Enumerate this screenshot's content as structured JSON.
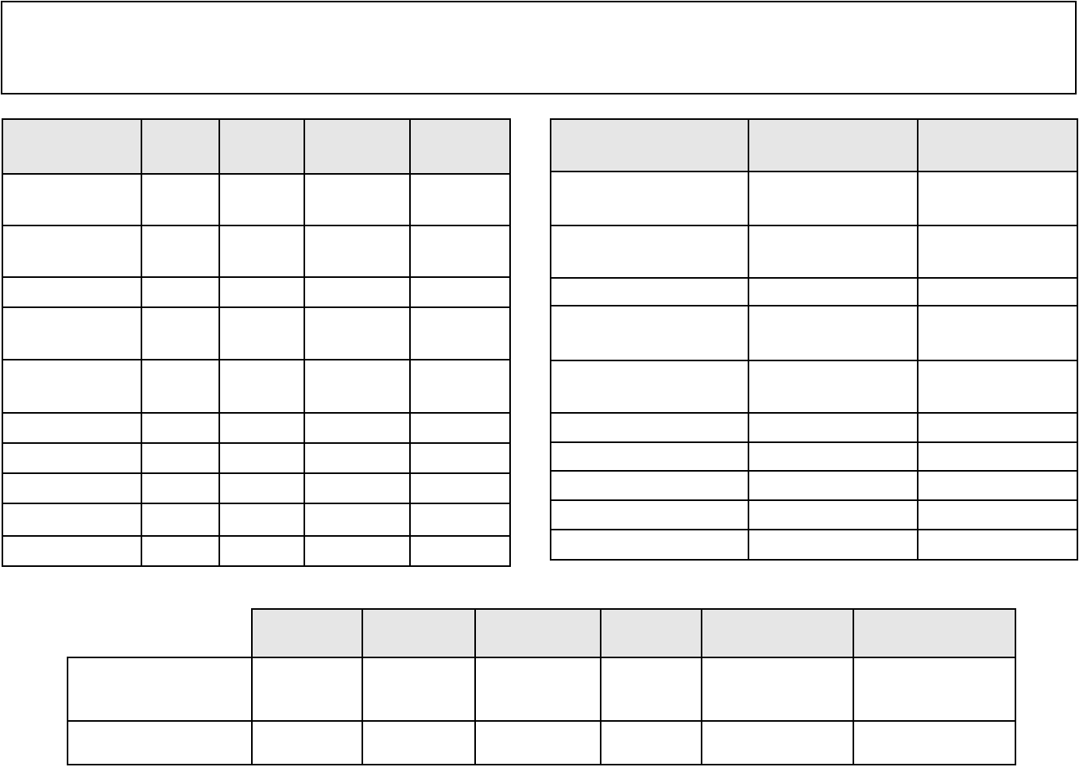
{
  "colors": {
    "page_background": "#ffffff",
    "table_border": "#000000",
    "header_fill": "#e6e6e6"
  },
  "top_box": {
    "content": ""
  },
  "left_table": {
    "header_labels": [
      "",
      "",
      "",
      "",
      ""
    ],
    "rows": [
      [
        "",
        "",
        "",
        "",
        ""
      ],
      [
        "",
        "",
        "",
        "",
        ""
      ],
      [
        "",
        "",
        "",
        "",
        ""
      ],
      [
        "",
        "",
        "",
        "",
        ""
      ],
      [
        "",
        "",
        "",
        "",
        ""
      ],
      [
        "",
        "",
        "",
        "",
        ""
      ],
      [
        "",
        "",
        "",
        "",
        ""
      ],
      [
        "",
        "",
        "",
        "",
        ""
      ],
      [
        "",
        "",
        "",
        "",
        ""
      ],
      [
        "",
        "",
        "",
        "",
        ""
      ]
    ]
  },
  "right_table": {
    "header_labels": [
      "",
      "",
      ""
    ],
    "rows": [
      [
        "",
        "",
        ""
      ],
      [
        "",
        "",
        ""
      ],
      [
        "",
        "",
        ""
      ],
      [
        "",
        "",
        ""
      ],
      [
        "",
        "",
        ""
      ],
      [
        "",
        "",
        ""
      ],
      [
        "",
        "",
        ""
      ],
      [
        "",
        "",
        ""
      ],
      [
        "",
        "",
        ""
      ],
      [
        "",
        "",
        ""
      ]
    ]
  },
  "bottom_table": {
    "corner_cell": "",
    "header_labels": [
      "",
      "",
      "",
      "",
      "",
      ""
    ],
    "rows": [
      [
        "",
        "",
        "",
        "",
        "",
        "",
        ""
      ],
      [
        "",
        "",
        "",
        "",
        "",
        "",
        ""
      ]
    ]
  }
}
